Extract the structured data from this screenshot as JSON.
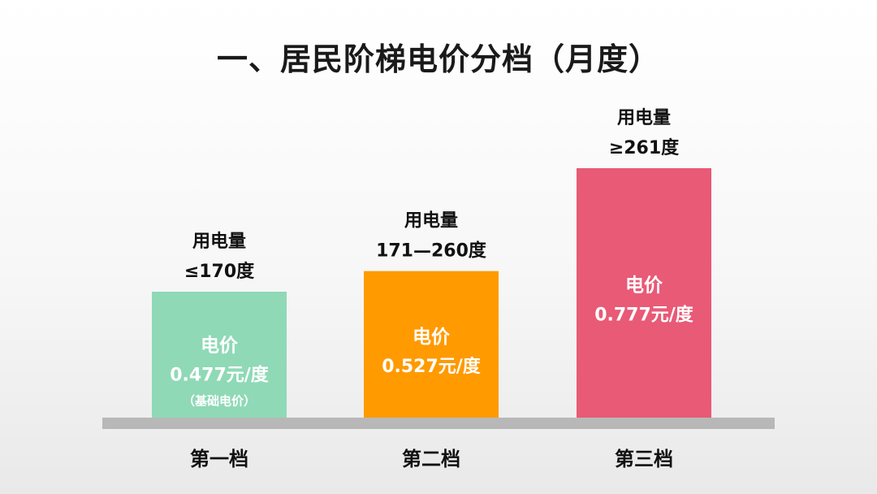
{
  "slide": {
    "title": "一、居民阶梯电价分档（月度）"
  },
  "chart_data": {
    "type": "bar",
    "title": "一、居民阶梯电价分档（月度）",
    "categories": [
      "第一档",
      "第二档",
      "第三档"
    ],
    "values": [
      0.477,
      0.527,
      0.777
    ],
    "unit": "元/度",
    "bars": [
      {
        "category": "第一档",
        "usage_title": "用电量",
        "usage_range": "≤170度",
        "price_title": "电价",
        "price_text": "0.477元/度",
        "note": "（基础电价）",
        "color": "#8fd9b6"
      },
      {
        "category": "第二档",
        "usage_title": "用电量",
        "usage_range": "171—260度",
        "price_title": "电价",
        "price_text": "0.527元/度",
        "note": "",
        "color": "#ff9a00"
      },
      {
        "category": "第三档",
        "usage_title": "用电量",
        "usage_range": "≥261度",
        "price_title": "电价",
        "price_text": "0.777元/度",
        "note": "",
        "color": "#e85a76"
      }
    ],
    "colors": {
      "baseline": "#b8b8b8",
      "price_text": "#ffffff",
      "label_text": "#111111"
    },
    "grid": false,
    "legend": "none"
  }
}
